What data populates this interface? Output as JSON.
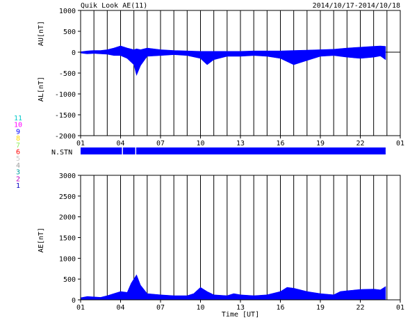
{
  "header": {
    "title": "Quik Look AE(11)",
    "date_range": "2014/10/17-2014/10/18"
  },
  "colors": {
    "fill": "#0000ff",
    "grid": "#000000",
    "background": "#ffffff"
  },
  "station_legend": [
    {
      "label": "11",
      "color": "#00c8c8"
    },
    {
      "label": "10",
      "color": "#ff00ff"
    },
    {
      "label": "9",
      "color": "#0000ff"
    },
    {
      "label": "8",
      "color": "#ffdc00"
    },
    {
      "label": "7",
      "color": "#90ee60"
    },
    {
      "label": "6",
      "color": "#ff0000"
    },
    {
      "label": "5",
      "color": "#c8c8c8"
    },
    {
      "label": "4",
      "color": "#a0a0a0"
    },
    {
      "label": "3",
      "color": "#00a0a0"
    },
    {
      "label": "2",
      "color": "#c000c0"
    },
    {
      "label": "1",
      "color": "#0000c0"
    }
  ],
  "chart_data": [
    {
      "type": "area",
      "ylabel_top": "AU[nT]",
      "ylabel_bottom": "AL[nT]",
      "ylim": [
        -2000,
        1000
      ],
      "y_ticks": [
        "1000",
        "500",
        "0",
        "-500",
        "-1000",
        "-1500",
        "-2000"
      ],
      "x_ticks": [
        "01",
        "04",
        "07",
        "10",
        "13",
        "16",
        "19",
        "22",
        "01"
      ],
      "x_range_hours": [
        0,
        24
      ],
      "grid": "vertical-hourly",
      "series": [
        {
          "x": [
            0,
            0.5,
            1,
            1.5,
            2,
            2.5,
            3,
            3.5,
            4,
            4.2,
            4.5,
            5,
            6,
            7,
            8,
            9,
            9.5,
            10,
            11,
            12,
            13,
            14,
            15,
            16,
            17,
            18,
            19,
            20,
            21,
            22,
            22.5,
            22.9
          ],
          "upper": [
            10,
            30,
            40,
            40,
            60,
            100,
            150,
            100,
            60,
            80,
            60,
            100,
            60,
            40,
            30,
            20,
            20,
            20,
            20,
            20,
            30,
            30,
            30,
            40,
            50,
            60,
            70,
            100,
            120,
            140,
            150,
            140
          ],
          "lower": [
            -20,
            -40,
            -30,
            -40,
            -50,
            -80,
            -80,
            -150,
            -300,
            -550,
            -320,
            -100,
            -80,
            -60,
            -80,
            -150,
            -300,
            -180,
            -100,
            -100,
            -80,
            -100,
            -150,
            -300,
            -200,
            -100,
            -80,
            -120,
            -150,
            -120,
            -90,
            -180
          ]
        }
      ]
    },
    {
      "type": "bar",
      "ylabel": "N.STN",
      "x_range_hours": [
        0,
        24
      ],
      "coverage_hours": [
        0,
        22.9
      ],
      "gaps_hours": [
        3.1,
        4.1
      ]
    },
    {
      "type": "area",
      "ylabel": "AE[nT]",
      "xlabel": "Time [UT]",
      "ylim": [
        0,
        3000
      ],
      "y_ticks": [
        "3000",
        "2500",
        "2000",
        "1500",
        "1000",
        "500",
        "0"
      ],
      "x_ticks": [
        "01",
        "04",
        "07",
        "10",
        "13",
        "16",
        "19",
        "22",
        "01"
      ],
      "x_range_hours": [
        0,
        24
      ],
      "grid": "vertical-hourly",
      "series": [
        {
          "x": [
            0,
            0.5,
            1,
            1.5,
            2,
            2.5,
            3,
            3.5,
            3.8,
            4.2,
            4.5,
            5,
            6,
            7,
            8,
            8.5,
            9,
            9.5,
            10,
            11,
            11.5,
            12,
            13,
            14,
            15,
            15.5,
            16,
            17,
            18,
            19,
            19.5,
            20,
            21,
            22,
            22.5,
            22.9
          ],
          "y": [
            50,
            80,
            70,
            60,
            100,
            150,
            200,
            180,
            400,
            600,
            350,
            150,
            120,
            100,
            100,
            150,
            300,
            200,
            120,
            100,
            150,
            120,
            100,
            120,
            200,
            300,
            280,
            200,
            150,
            120,
            200,
            220,
            250,
            260,
            240,
            320
          ]
        }
      ]
    }
  ]
}
